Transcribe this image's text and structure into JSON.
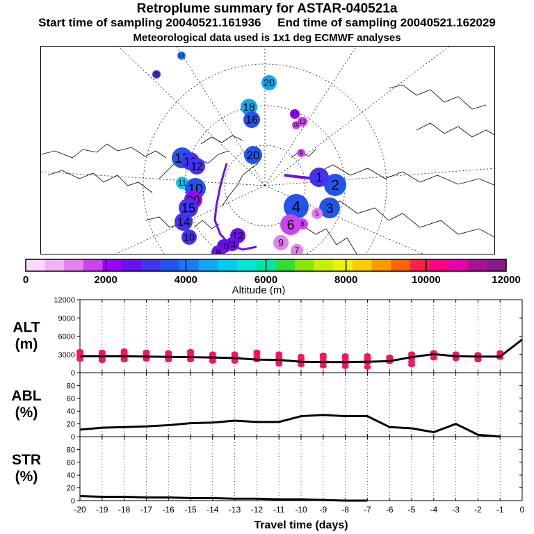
{
  "header": {
    "title": "Retroplume summary for ASTAR-040521a",
    "start_label": "Start time of sampling 20040521.161936",
    "end_label": "End time of sampling 20040521.162029",
    "met_label": "Meteorological data used is 1x1 deg ECMWF analyses"
  },
  "colorbar": {
    "colors": [
      "#ffd8ff",
      "#f2b2f5",
      "#e67ff0",
      "#cc44ee",
      "#9900ff",
      "#6a10f0",
      "#4433ee",
      "#2255ee",
      "#1a7af5",
      "#10a8f5",
      "#00ccee",
      "#00e6d6",
      "#00e6a0",
      "#33dd33",
      "#88e800",
      "#c8f000",
      "#f2f200",
      "#ffcc00",
      "#ff9900",
      "#ff6600",
      "#ff2244",
      "#ff0088",
      "#e600aa",
      "#aa1199",
      "#8a1a88"
    ],
    "tick_labels": [
      "0",
      "2000",
      "4000",
      "6000",
      "8000",
      "10000",
      "12000"
    ],
    "label": "Altitude (m)"
  },
  "map": {
    "clusters": [
      {
        "label": "18",
        "color": "#1a7af5"
      },
      {
        "label": "20",
        "color": "#4433ee"
      },
      {
        "label": "20",
        "color": "#10a8f5"
      },
      {
        "label": "18",
        "color": "#10a8f5"
      },
      {
        "label": "16",
        "color": "#2255ee"
      },
      {
        "label": "15",
        "color": "#9900ff"
      },
      {
        "label": "13",
        "color": "#cc44ee"
      },
      {
        "label": "10",
        "color": "#cc44ee"
      },
      {
        "label": "9",
        "color": "#cc44ee"
      },
      {
        "label": "20",
        "color": "#2255ee"
      },
      {
        "label": "15",
        "color": "#2255ee"
      },
      {
        "label": "13",
        "color": "#4433ee"
      },
      {
        "label": "12",
        "color": "#4433ee"
      },
      {
        "label": "11",
        "color": "#00ccee"
      },
      {
        "label": "10",
        "color": "#2255ee"
      },
      {
        "label": "20",
        "color": "#9900ff"
      },
      {
        "label": "15",
        "color": "#4433ee"
      },
      {
        "label": "14",
        "color": "#4433ee"
      },
      {
        "label": "10",
        "color": "#4433ee"
      },
      {
        "label": "12",
        "color": "#6a10f0"
      },
      {
        "label": "11",
        "color": "#6a10f0"
      },
      {
        "label": "10",
        "color": "#6a10f0"
      },
      {
        "label": "9",
        "color": "#6a10f0"
      },
      {
        "label": "2",
        "color": "#2255ee"
      },
      {
        "label": "1",
        "color": "#4433ee"
      },
      {
        "label": "3",
        "color": "#2255ee"
      },
      {
        "label": "4",
        "color": "#2255ee"
      },
      {
        "label": "5",
        "color": "#e67ff0"
      },
      {
        "label": "6",
        "color": "#cc44ee"
      },
      {
        "label": "8",
        "color": "#cc44ee"
      },
      {
        "label": "7",
        "color": "#e67ff0"
      },
      {
        "label": "9",
        "color": "#e67ff0"
      }
    ]
  },
  "chart_data": [
    {
      "type": "line",
      "title": "ALT",
      "ylabel": "ALT (m)",
      "ylabel_lines": [
        "ALT",
        "(m)"
      ],
      "ylim": [
        0,
        12000
      ],
      "yticks": [
        "0",
        "3000",
        "6000",
        "9000",
        "12000"
      ],
      "x": [
        -20,
        -19,
        -18,
        -17,
        -16,
        -15,
        -14,
        -13,
        -12,
        -11,
        -10,
        -9,
        -8,
        -7,
        -6,
        -5,
        -4,
        -3,
        -2,
        -1,
        0
      ],
      "series": [
        {
          "name": "mean altitude",
          "values": [
            2700,
            2700,
            2700,
            2650,
            2600,
            2550,
            2500,
            2400,
            2150,
            2100,
            1800,
            1750,
            1750,
            1800,
            1900,
            2550,
            3050,
            2700,
            2650,
            2650,
            5450
          ]
        }
      ],
      "scatter_color": "#ff1060",
      "scatter_points": [
        [
          -20,
          3200
        ],
        [
          -20,
          2900
        ],
        [
          -20,
          2500
        ],
        [
          -20,
          2200
        ],
        [
          -20,
          3500
        ],
        [
          -19,
          3400
        ],
        [
          -19,
          3100
        ],
        [
          -19,
          2800
        ],
        [
          -19,
          2500
        ],
        [
          -19,
          2200
        ],
        [
          -19,
          2000
        ],
        [
          -18,
          3600
        ],
        [
          -18,
          3300
        ],
        [
          -18,
          3000
        ],
        [
          -18,
          2700
        ],
        [
          -18,
          2400
        ],
        [
          -18,
          2100
        ],
        [
          -17,
          3400
        ],
        [
          -17,
          3100
        ],
        [
          -17,
          2800
        ],
        [
          -17,
          2500
        ],
        [
          -17,
          2200
        ],
        [
          -16,
          3300
        ],
        [
          -16,
          3000
        ],
        [
          -16,
          2700
        ],
        [
          -16,
          2400
        ],
        [
          -16,
          2100
        ],
        [
          -15,
          3500
        ],
        [
          -15,
          3200
        ],
        [
          -15,
          2900
        ],
        [
          -15,
          2500
        ],
        [
          -15,
          2100
        ],
        [
          -14,
          3100
        ],
        [
          -14,
          2700
        ],
        [
          -14,
          2300
        ],
        [
          -14,
          1900
        ],
        [
          -13,
          3100
        ],
        [
          -13,
          2700
        ],
        [
          -13,
          2300
        ],
        [
          -13,
          1900
        ],
        [
          -12,
          3400
        ],
        [
          -12,
          3000
        ],
        [
          -12,
          2500
        ],
        [
          -12,
          2100
        ],
        [
          -11,
          3100
        ],
        [
          -11,
          2700
        ],
        [
          -11,
          2300
        ],
        [
          -11,
          1700
        ],
        [
          -11,
          1400
        ],
        [
          -10,
          2700
        ],
        [
          -10,
          2200
        ],
        [
          -10,
          1800
        ],
        [
          -10,
          1300
        ],
        [
          -9,
          2900
        ],
        [
          -9,
          2500
        ],
        [
          -9,
          2000
        ],
        [
          -9,
          1600
        ],
        [
          -9,
          1100
        ],
        [
          -8,
          2800
        ],
        [
          -8,
          2400
        ],
        [
          -8,
          1900
        ],
        [
          -8,
          1500
        ],
        [
          -8,
          1000
        ],
        [
          -7,
          2800
        ],
        [
          -7,
          2400
        ],
        [
          -7,
          2000
        ],
        [
          -7,
          1600
        ],
        [
          -7,
          900
        ],
        [
          -6,
          2600
        ],
        [
          -6,
          2300
        ],
        [
          -6,
          2000
        ],
        [
          -6,
          1800
        ],
        [
          -5,
          3100
        ],
        [
          -5,
          2700
        ],
        [
          -5,
          2300
        ],
        [
          -5,
          1800
        ],
        [
          -5,
          1300
        ],
        [
          -4,
          3300
        ],
        [
          -4,
          2800
        ],
        [
          -4,
          2400
        ],
        [
          -3,
          3100
        ],
        [
          -3,
          2700
        ],
        [
          -3,
          2300
        ],
        [
          -2,
          3000
        ],
        [
          -2,
          2700
        ],
        [
          -2,
          2400
        ],
        [
          -2,
          2100
        ],
        [
          -1,
          3300
        ],
        [
          -1,
          2900
        ],
        [
          -1,
          2500
        ]
      ]
    },
    {
      "type": "line",
      "title": "ABL",
      "ylabel": "ABL (%)",
      "ylabel_lines": [
        "ABL",
        "(%)"
      ],
      "ylim": [
        0,
        100
      ],
      "yticks": [
        "0",
        "20",
        "40",
        "60",
        "80"
      ],
      "x": [
        -20,
        -19,
        -18,
        -17,
        -16,
        -15,
        -14,
        -13,
        -12,
        -11,
        -10,
        -9,
        -8,
        -7,
        -6,
        -5,
        -4,
        -3,
        -2,
        -1
      ],
      "series": [
        {
          "name": "ABL fraction",
          "values": [
            11,
            14,
            15,
            16,
            18,
            21,
            22,
            25,
            23,
            23,
            32,
            34,
            32,
            32,
            15,
            13,
            7,
            20,
            3,
            0
          ]
        }
      ]
    },
    {
      "type": "line",
      "title": "STR",
      "ylabel": "STR (%)",
      "ylabel_lines": [
        "STR",
        "(%)"
      ],
      "ylim": [
        0,
        100
      ],
      "yticks": [
        "0",
        "20",
        "40",
        "60",
        "80"
      ],
      "x": [
        -20,
        -19,
        -18,
        -17,
        -16,
        -15,
        -14,
        -13,
        -12,
        -11,
        -10,
        -9,
        -8,
        -7
      ],
      "series": [
        {
          "name": "STR fraction",
          "values": [
            7,
            6,
            6,
            5,
            5,
            4,
            4,
            3,
            3,
            2,
            2,
            1,
            0,
            0
          ]
        }
      ],
      "xlabel": "Travel time (days)",
      "xticks": [
        "-20",
        "-19",
        "-18",
        "-17",
        "-16",
        "-15",
        "-14",
        "-13",
        "-12",
        "-11",
        "-10",
        "-9",
        "-8",
        "-7",
        "-6",
        "-5",
        "-4",
        "-3",
        "-2",
        "-1",
        "0"
      ]
    }
  ]
}
